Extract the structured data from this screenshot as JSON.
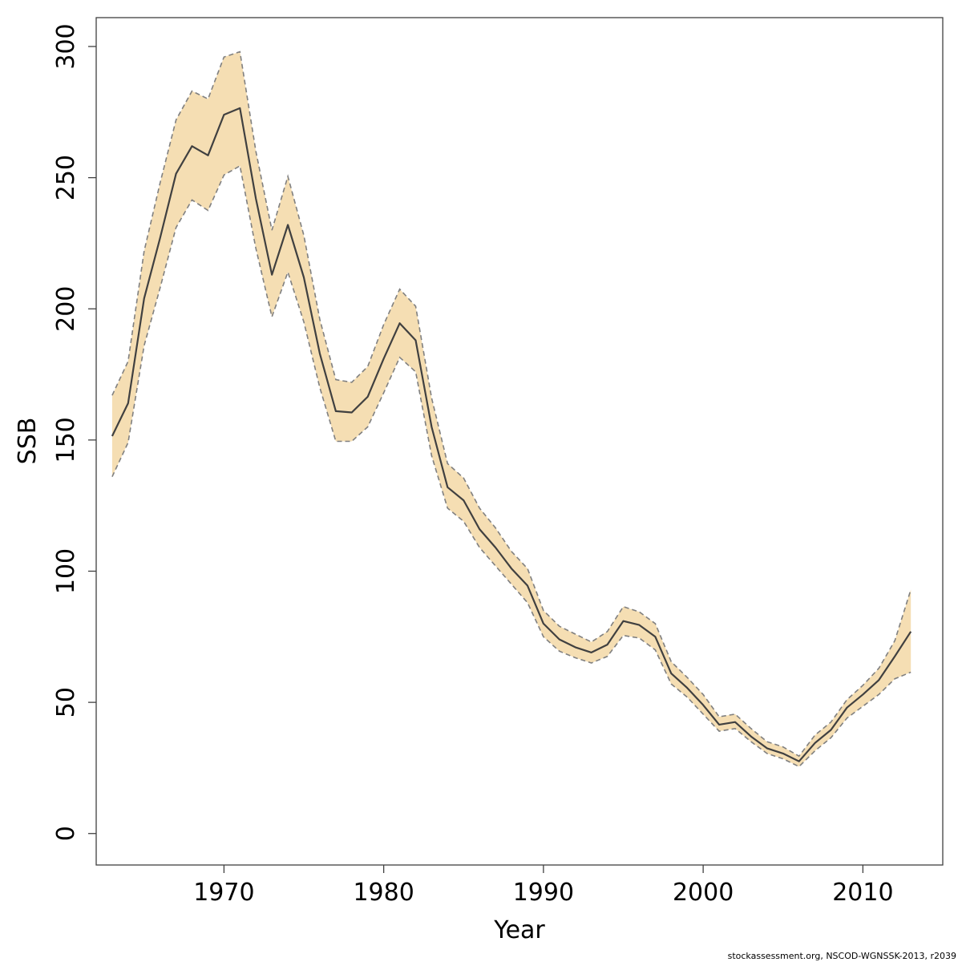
{
  "chart_data": {
    "type": "line",
    "title": "",
    "xlabel": "Year",
    "ylabel": "SSB",
    "xlim": [
      1962,
      2015
    ],
    "ylim": [
      -12,
      311
    ],
    "x_ticks": [
      1970,
      1980,
      1990,
      2000,
      2010
    ],
    "y_ticks": [
      0,
      50,
      100,
      150,
      200,
      250,
      300
    ],
    "x_tick_labels": [
      "1970",
      "1980",
      "1990",
      "2000",
      "2010"
    ],
    "y_tick_labels": [
      "0",
      "50",
      "100",
      "150",
      "200",
      "250",
      "300"
    ],
    "grid": false,
    "legend": "none",
    "colors": {
      "band": "#f5deb3",
      "line": "#404040",
      "bounds": "#808080",
      "axis": "#404040"
    },
    "series": [
      {
        "role": "estimate",
        "x": [
          1963,
          1964,
          1965,
          1966,
          1967,
          1968,
          1969,
          1970,
          1971,
          1972,
          1973,
          1974,
          1975,
          1976,
          1977,
          1978,
          1979,
          1980,
          1981,
          1982,
          1983,
          1984,
          1985,
          1986,
          1987,
          1988,
          1989,
          1990,
          1991,
          1992,
          1993,
          1994,
          1995,
          1996,
          1997,
          1998,
          1999,
          2000,
          2001,
          2002,
          2003,
          2004,
          2005,
          2006,
          2007,
          2008,
          2009,
          2010,
          2011,
          2012,
          2013
        ],
        "values": [
          151.5,
          164,
          204,
          227,
          251.5,
          262,
          258.5,
          274,
          276.5,
          242,
          213,
          232,
          212,
          183,
          161,
          160.5,
          166.5,
          181,
          194.5,
          188,
          155,
          132,
          127,
          116,
          109,
          101,
          94.5,
          80,
          74,
          71,
          69,
          72,
          81,
          79.5,
          75,
          61,
          55.5,
          49,
          41.5,
          42.5,
          37,
          32.5,
          30.5,
          27.5,
          34.5,
          39.5,
          48,
          53,
          58.5,
          67.5,
          77
        ]
      },
      {
        "role": "upper",
        "x": [
          1963,
          1964,
          1965,
          1966,
          1967,
          1968,
          1969,
          1970,
          1971,
          1972,
          1973,
          1974,
          1975,
          1976,
          1977,
          1978,
          1979,
          1980,
          1981,
          1982,
          1983,
          1984,
          1985,
          1986,
          1987,
          1988,
          1989,
          1990,
          1991,
          1992,
          1993,
          1994,
          1995,
          1996,
          1997,
          1998,
          1999,
          2000,
          2001,
          2002,
          2003,
          2004,
          2005,
          2006,
          2007,
          2008,
          2009,
          2010,
          2011,
          2012,
          2013
        ],
        "values": [
          167,
          180,
          222,
          248,
          272,
          283,
          280,
          296,
          298,
          260,
          230,
          250.5,
          228,
          196,
          173,
          172,
          178,
          194,
          207.5,
          201,
          166,
          141,
          135.5,
          124,
          116.5,
          107.5,
          101,
          85,
          79,
          76,
          73,
          77,
          86.5,
          84.5,
          80,
          65.5,
          59.5,
          53,
          44.5,
          45.5,
          40,
          35,
          33,
          29.5,
          37.5,
          42.5,
          51,
          56.5,
          63,
          73.5,
          93
        ]
      },
      {
        "role": "lower",
        "x": [
          1963,
          1964,
          1965,
          1966,
          1967,
          1968,
          1969,
          1970,
          1971,
          1972,
          1973,
          1974,
          1975,
          1976,
          1977,
          1978,
          1979,
          1980,
          1981,
          1982,
          1983,
          1984,
          1985,
          1986,
          1987,
          1988,
          1989,
          1990,
          1991,
          1992,
          1993,
          1994,
          1995,
          1996,
          1997,
          1998,
          1999,
          2000,
          2001,
          2002,
          2003,
          2004,
          2005,
          2006,
          2007,
          2008,
          2009,
          2010,
          2011,
          2012,
          2013
        ],
        "values": [
          136,
          149,
          186,
          208,
          231,
          241.5,
          237.5,
          251,
          254.5,
          223,
          197,
          214,
          195,
          170,
          149.5,
          149.5,
          155,
          168,
          181.5,
          176,
          144,
          124,
          119,
          109,
          102,
          95,
          88,
          75,
          69.5,
          67,
          65,
          67.5,
          75.5,
          74.5,
          70,
          57,
          52,
          45.5,
          39,
          40,
          35,
          30.5,
          28.5,
          25.5,
          31.5,
          36.5,
          44,
          48.5,
          53,
          59,
          61.5
        ]
      }
    ]
  },
  "footer": {
    "credit": "stockassessment.org, NSCOD-WGNSSK-2013, r2039"
  }
}
